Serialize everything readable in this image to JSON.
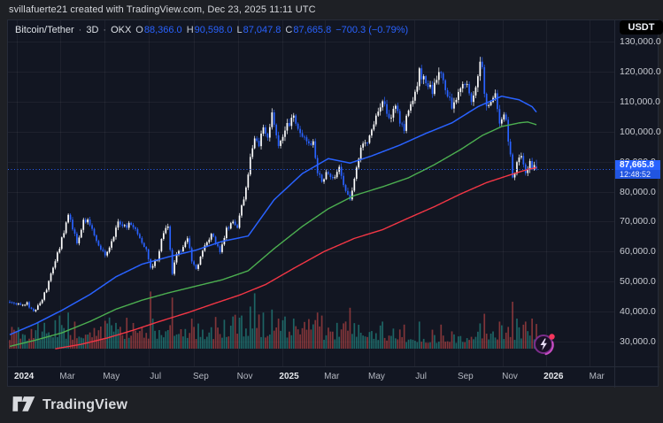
{
  "attribution": "svillafuerte21 created with TradingView.com, Dec 23, 2025 11:11 UTC",
  "legend": {
    "symbol": "Bitcoin/Tether",
    "sep": "·",
    "interval": "3D",
    "exchange": "OKX",
    "o_label": "O",
    "o": "88,366.0",
    "h_label": "H",
    "h": "90,598.0",
    "l_label": "L",
    "l": "87,047.8",
    "c_label": "C",
    "c": "87,665.8",
    "change": "−700.3 (−0.79%)"
  },
  "price_axis": {
    "currency": "USDT",
    "ticks": [
      "130,000.0",
      "120,000.0",
      "110,000.0",
      "100,000.0",
      "90,000.0",
      "80,000.0",
      "70,000.0",
      "60,000.0",
      "50,000.0",
      "40,000.0",
      "30,000.0"
    ],
    "label": "87,665.8",
    "countdown": "12:48:52"
  },
  "time_axis": {
    "labels": [
      {
        "text": "2024",
        "t": 3.3,
        "major": true
      },
      {
        "text": "Mar",
        "t": 23.3,
        "major": false
      },
      {
        "text": "May",
        "t": 43.6,
        "major": false
      },
      {
        "text": "Jul",
        "t": 64.0,
        "major": false
      },
      {
        "text": "Sep",
        "t": 84.9,
        "major": false
      },
      {
        "text": "Nov",
        "t": 105.2,
        "major": false
      },
      {
        "text": "2025",
        "t": 125.6,
        "major": true
      },
      {
        "text": "Mar",
        "t": 145.3,
        "major": false
      },
      {
        "text": "May",
        "t": 166.0,
        "major": false
      },
      {
        "text": "Jul",
        "t": 186.5,
        "major": false
      },
      {
        "text": "Sep",
        "t": 207.0,
        "major": false
      },
      {
        "text": "Nov",
        "t": 227.5,
        "major": false
      },
      {
        "text": "2026",
        "t": 247.6,
        "major": true
      },
      {
        "text": "Mar",
        "t": 267.6,
        "major": false
      }
    ]
  },
  "footer": {
    "brand": "TradingView"
  },
  "colors": {
    "up": "#ffffff",
    "down": "#2962ff",
    "ma_fast": "#2962ff",
    "ma_mid": "#4caf50",
    "ma_slow": "#f23645",
    "vol_up": "rgba(38,166,154,0.55)",
    "vol_down": "rgba(239,83,80,0.5)",
    "accent": "#2962ff",
    "grid": "rgba(255,255,255,0.05)"
  },
  "chart_data": {
    "type": "candlestick",
    "title": "Bitcoin/Tether · 3D · OKX",
    "x_unit": "3-day bars; t=0 ≈ 2023-12-22, t=243 = 2025-12-23",
    "y_unit": "USDT, values in thousands",
    "y_range_k": [
      30,
      130
    ],
    "visible_bars": 244,
    "current_price": 87665.8,
    "last_bar": {
      "open": 88366.0,
      "high": 90598.0,
      "low": 87047.8,
      "close": 87665.8,
      "change": -700.3,
      "change_pct": -0.79
    },
    "price_anchors_k": [
      [
        0,
        43.2
      ],
      [
        3,
        42.6
      ],
      [
        8,
        42.8
      ],
      [
        11,
        39.8
      ],
      [
        14,
        42.9
      ],
      [
        17,
        47.5
      ],
      [
        23,
        61.5
      ],
      [
        27,
        72.0
      ],
      [
        29,
        68.0
      ],
      [
        31,
        63.2
      ],
      [
        34,
        69.8
      ],
      [
        36,
        70.8
      ],
      [
        40,
        64.0
      ],
      [
        44,
        58.2
      ],
      [
        47,
        63.5
      ],
      [
        50,
        69.8
      ],
      [
        53,
        68.3
      ],
      [
        56,
        69.3
      ],
      [
        60,
        64.8
      ],
      [
        63,
        60.1
      ],
      [
        65,
        54.8
      ],
      [
        68,
        57.5
      ],
      [
        71,
        66.5
      ],
      [
        73,
        67.8
      ],
      [
        75,
        52.5
      ],
      [
        77,
        59.0
      ],
      [
        80,
        61.0
      ],
      [
        82,
        64.0
      ],
      [
        84,
        57.3
      ],
      [
        86,
        54.2
      ],
      [
        89,
        60.0
      ],
      [
        93,
        65.8
      ],
      [
        95,
        62.8
      ],
      [
        97,
        60.5
      ],
      [
        100,
        67.5
      ],
      [
        103,
        69.8
      ],
      [
        105,
        67.8
      ],
      [
        107,
        75.5
      ],
      [
        109,
        80.4
      ],
      [
        111,
        90.5
      ],
      [
        113,
        98.3
      ],
      [
        115,
        96.2
      ],
      [
        117,
        101.2
      ],
      [
        119,
        97.5
      ],
      [
        121,
        106.1
      ],
      [
        124,
        94.2
      ],
      [
        126,
        97.8
      ],
      [
        128,
        102.1
      ],
      [
        131,
        104.5
      ],
      [
        133,
        102.0
      ],
      [
        135,
        97.6
      ],
      [
        138,
        96.5
      ],
      [
        140,
        96.1
      ],
      [
        142,
        86.8
      ],
      [
        144,
        84.3
      ],
      [
        146,
        86.0
      ],
      [
        149,
        83.8
      ],
      [
        152,
        87.3
      ],
      [
        154,
        82.5
      ],
      [
        157,
        77.2
      ],
      [
        159,
        84.5
      ],
      [
        162,
        94.3
      ],
      [
        165,
        97.0
      ],
      [
        168,
        103.3
      ],
      [
        172,
        110.2
      ],
      [
        174,
        106.8
      ],
      [
        176,
        104.6
      ],
      [
        178,
        109.7
      ],
      [
        180,
        103.0
      ],
      [
        182,
        100.2
      ],
      [
        184,
        107.9
      ],
      [
        186,
        109.0
      ],
      [
        189,
        119.8
      ],
      [
        191,
        117.5
      ],
      [
        193,
        115.2
      ],
      [
        195,
        113.4
      ],
      [
        197,
        117.2
      ],
      [
        199,
        120.5
      ],
      [
        201,
        113.0
      ],
      [
        204,
        108.9
      ],
      [
        206,
        111.5
      ],
      [
        209,
        115.5
      ],
      [
        211,
        116.6
      ],
      [
        213,
        109.3
      ],
      [
        215,
        114.0
      ],
      [
        217,
        123.5
      ],
      [
        218,
        121.5
      ],
      [
        219,
        111.8
      ],
      [
        220,
        107.3
      ],
      [
        222,
        110.5
      ],
      [
        224,
        113.9
      ],
      [
        226,
        102.0
      ],
      [
        228,
        106.2
      ],
      [
        229,
        103.5
      ],
      [
        230,
        96.0
      ],
      [
        231,
        91.5
      ],
      [
        232,
        84.0
      ],
      [
        233,
        87.0
      ],
      [
        234,
        90.4
      ],
      [
        236,
        92.4
      ],
      [
        237,
        90.0
      ],
      [
        238,
        86.2
      ],
      [
        239,
        87.8
      ],
      [
        240,
        89.9
      ],
      [
        241,
        86.5
      ],
      [
        242,
        88.4
      ],
      [
        243,
        87.9
      ]
    ],
    "sma_fast_k": [
      [
        0,
        32.3
      ],
      [
        12,
        36.0
      ],
      [
        24,
        40.4
      ],
      [
        37,
        45.7
      ],
      [
        49,
        51.6
      ],
      [
        61,
        55.8
      ],
      [
        73,
        58.2
      ],
      [
        86,
        60.5
      ],
      [
        98,
        63.4
      ],
      [
        110,
        65.2
      ],
      [
        122,
        77.3
      ],
      [
        135,
        86.0
      ],
      [
        147,
        91.0
      ],
      [
        157,
        89.5
      ],
      [
        167,
        91.9
      ],
      [
        180,
        95.5
      ],
      [
        192,
        99.4
      ],
      [
        204,
        102.9
      ],
      [
        216,
        108.3
      ],
      [
        227,
        111.8
      ],
      [
        235,
        110.6
      ],
      [
        241,
        108.3
      ],
      [
        243,
        106.5
      ]
    ],
    "sma_mid_k": [
      [
        0,
        28.4
      ],
      [
        12,
        30.5
      ],
      [
        24,
        32.9
      ],
      [
        37,
        36.7
      ],
      [
        49,
        40.8
      ],
      [
        61,
        43.8
      ],
      [
        73,
        46.2
      ],
      [
        86,
        48.5
      ],
      [
        98,
        50.6
      ],
      [
        110,
        53.6
      ],
      [
        122,
        61.0
      ],
      [
        135,
        68.4
      ],
      [
        147,
        74.3
      ],
      [
        159,
        78.7
      ],
      [
        172,
        81.6
      ],
      [
        184,
        84.6
      ],
      [
        196,
        89.0
      ],
      [
        208,
        94.0
      ],
      [
        218,
        98.7
      ],
      [
        227,
        101.7
      ],
      [
        235,
        102.9
      ],
      [
        239,
        103.2
      ],
      [
        243,
        102.3
      ]
    ],
    "sma_slow_k": [
      [
        21,
        27.6
      ],
      [
        33,
        29.1
      ],
      [
        45,
        31.2
      ],
      [
        57,
        33.8
      ],
      [
        69,
        36.7
      ],
      [
        82,
        39.6
      ],
      [
        94,
        42.6
      ],
      [
        106,
        45.5
      ],
      [
        118,
        49.0
      ],
      [
        131,
        54.4
      ],
      [
        145,
        60.0
      ],
      [
        159,
        64.4
      ],
      [
        172,
        67.3
      ],
      [
        184,
        71.2
      ],
      [
        196,
        75.0
      ],
      [
        208,
        79.2
      ],
      [
        220,
        83.0
      ],
      [
        231,
        85.6
      ],
      [
        239,
        87.4
      ],
      [
        243,
        88.0
      ]
    ],
    "volume_regime": [
      [
        0,
        0.42
      ],
      [
        30,
        0.5
      ],
      [
        60,
        0.55
      ],
      [
        90,
        0.5
      ],
      [
        113,
        0.65
      ],
      [
        135,
        0.5
      ],
      [
        160,
        0.45
      ],
      [
        190,
        0.33
      ],
      [
        215,
        0.3
      ],
      [
        230,
        0.42
      ],
      [
        243,
        0.48
      ]
    ],
    "volume_spikes": [
      [
        23,
        0.55
      ],
      [
        27,
        0.6
      ],
      [
        65,
        0.95
      ],
      [
        66,
        0.5
      ],
      [
        75,
        0.85
      ],
      [
        84,
        0.5
      ],
      [
        107,
        0.55
      ],
      [
        111,
        0.7
      ],
      [
        113,
        0.92
      ],
      [
        117,
        0.6
      ],
      [
        121,
        0.65
      ],
      [
        124,
        0.5
      ],
      [
        131,
        0.5
      ],
      [
        142,
        0.6
      ],
      [
        144,
        0.55
      ],
      [
        157,
        0.68
      ],
      [
        172,
        0.45
      ],
      [
        182,
        0.4
      ],
      [
        189,
        0.45
      ],
      [
        199,
        0.4
      ],
      [
        217,
        0.42
      ],
      [
        219,
        0.58
      ],
      [
        226,
        0.45
      ],
      [
        232,
        0.78
      ],
      [
        234,
        0.5
      ],
      [
        238,
        0.45
      ],
      [
        241,
        0.5
      ]
    ]
  }
}
